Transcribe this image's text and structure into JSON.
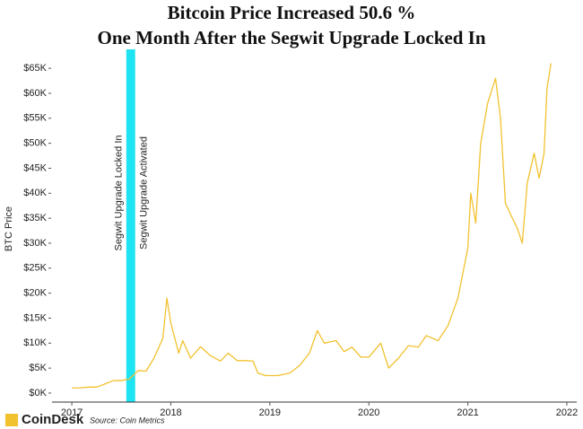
{
  "chart_data": {
    "type": "line",
    "title": "Bitcoin Price Increased 50.6 %",
    "subtitle": "One Month After the Segwit Upgrade Locked In",
    "ylabel": "BTC Price",
    "source": "Source: Coin Metrics",
    "brand": "CoinDesk",
    "x": [
      2017.0,
      2017.08,
      2017.17,
      2017.25,
      2017.33,
      2017.42,
      2017.5,
      2017.58,
      2017.67,
      2017.75,
      2017.83,
      2017.92,
      2017.96,
      2018.0,
      2018.04,
      2018.08,
      2018.12,
      2018.2,
      2018.3,
      2018.4,
      2018.5,
      2018.58,
      2018.67,
      2018.75,
      2018.83,
      2018.88,
      2018.96,
      2019.08,
      2019.2,
      2019.3,
      2019.4,
      2019.48,
      2019.55,
      2019.67,
      2019.75,
      2019.83,
      2019.92,
      2020.0,
      2020.12,
      2020.2,
      2020.3,
      2020.4,
      2020.5,
      2020.58,
      2020.7,
      2020.8,
      2020.9,
      2021.0,
      2021.03,
      2021.08,
      2021.13,
      2021.2,
      2021.28,
      2021.33,
      2021.38,
      2021.45,
      2021.5,
      2021.55,
      2021.6,
      2021.67,
      2021.72,
      2021.77,
      2021.8,
      2021.84
    ],
    "series": [
      {
        "name": "BTC Price",
        "color": "#f2c12e",
        "values": [
          1000,
          1050,
          1200,
          1200,
          1800,
          2500,
          2500,
          2800,
          4500,
          4400,
          7000,
          11000,
          19000,
          14000,
          11000,
          8000,
          10500,
          7000,
          9300,
          7500,
          6400,
          8000,
          6500,
          6500,
          6400,
          4000,
          3500,
          3500,
          4000,
          5500,
          8000,
          12500,
          10000,
          10500,
          8300,
          9200,
          7200,
          7200,
          10000,
          5000,
          7000,
          9500,
          9200,
          11500,
          10500,
          13500,
          19000,
          29000,
          40000,
          34000,
          50000,
          58000,
          63000,
          55000,
          38000,
          35000,
          33000,
          30000,
          42000,
          48000,
          43000,
          48000,
          61000,
          66000
        ]
      }
    ],
    "band": {
      "x": [
        2017.55,
        2017.64
      ],
      "color": "#1ee3f2",
      "labels": [
        "Segwit Upgrade Locked In",
        "Segwit Upgrade Activated"
      ]
    },
    "xlim": [
      2016.8,
      2022.1
    ],
    "xticks": [
      2017,
      2018,
      2019,
      2020,
      2021,
      2022
    ],
    "ylim": [
      -1800,
      67000
    ],
    "yticks": [
      {
        "value": 0,
        "label": "$0K"
      },
      {
        "value": 5000,
        "label": "$5K"
      },
      {
        "value": 10000,
        "label": "$10K"
      },
      {
        "value": 15000,
        "label": "$15K"
      },
      {
        "value": 20000,
        "label": "$20K"
      },
      {
        "value": 25000,
        "label": "$25K"
      },
      {
        "value": 30000,
        "label": "$30K"
      },
      {
        "value": 35000,
        "label": "$35K"
      },
      {
        "value": 40000,
        "label": "$40K"
      },
      {
        "value": 45000,
        "label": "$45K"
      },
      {
        "value": 50000,
        "label": "$50K"
      },
      {
        "value": 55000,
        "label": "$55K"
      },
      {
        "value": 60000,
        "label": "$60K"
      },
      {
        "value": 65000,
        "label": "$65K"
      }
    ]
  }
}
